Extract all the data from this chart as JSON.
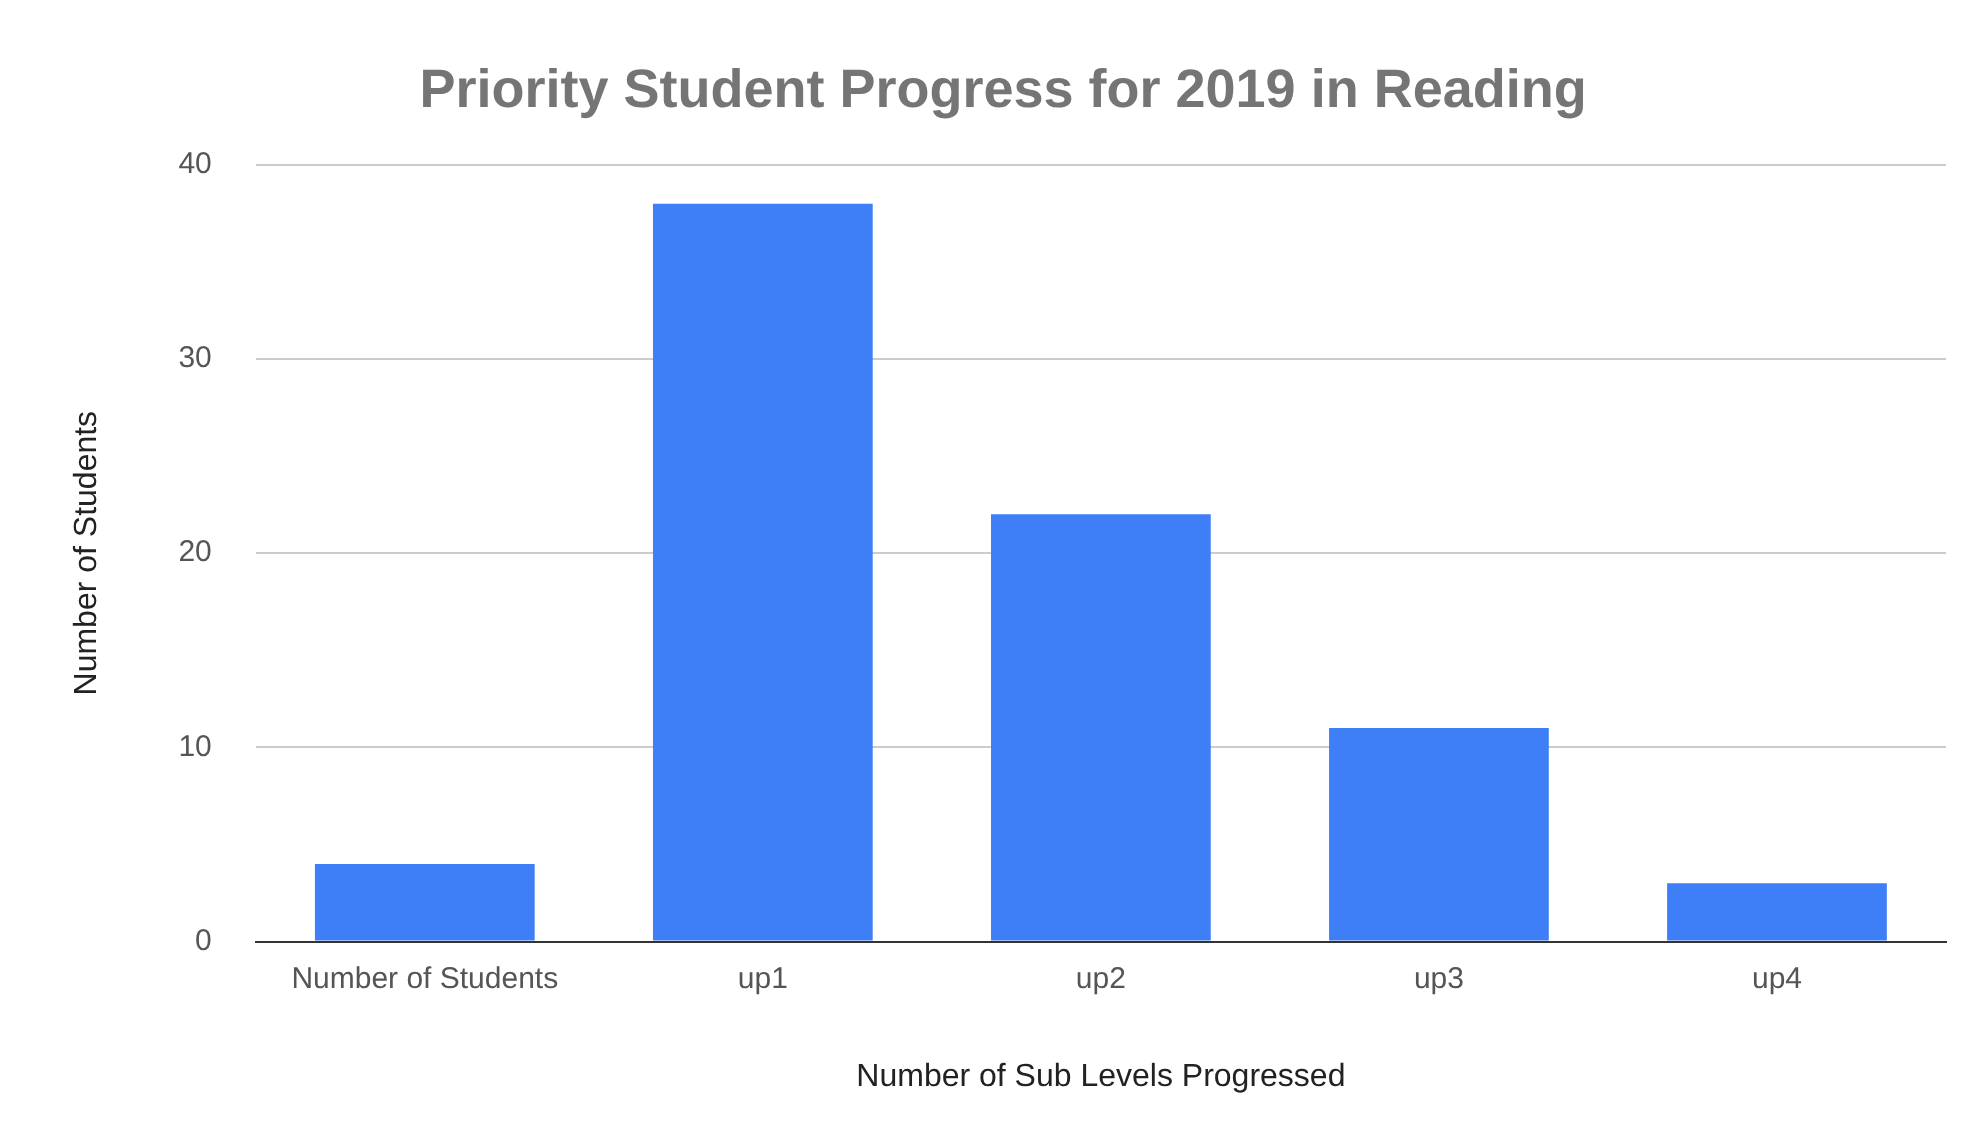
{
  "chart_data": {
    "type": "bar",
    "title": "Priority Student Progress for 2019 in Reading",
    "xlabel": "Number of Sub Levels Progressed",
    "ylabel": "Number of Students",
    "categories": [
      "Number of Students",
      "up1",
      "up2",
      "up3",
      "up4"
    ],
    "values": [
      4,
      38,
      22,
      11,
      3
    ],
    "color": "#3e7ef7",
    "ylim": [
      0,
      40
    ],
    "yticks": [
      0,
      10,
      20,
      30,
      40
    ],
    "grid": "y",
    "legend": false
  }
}
